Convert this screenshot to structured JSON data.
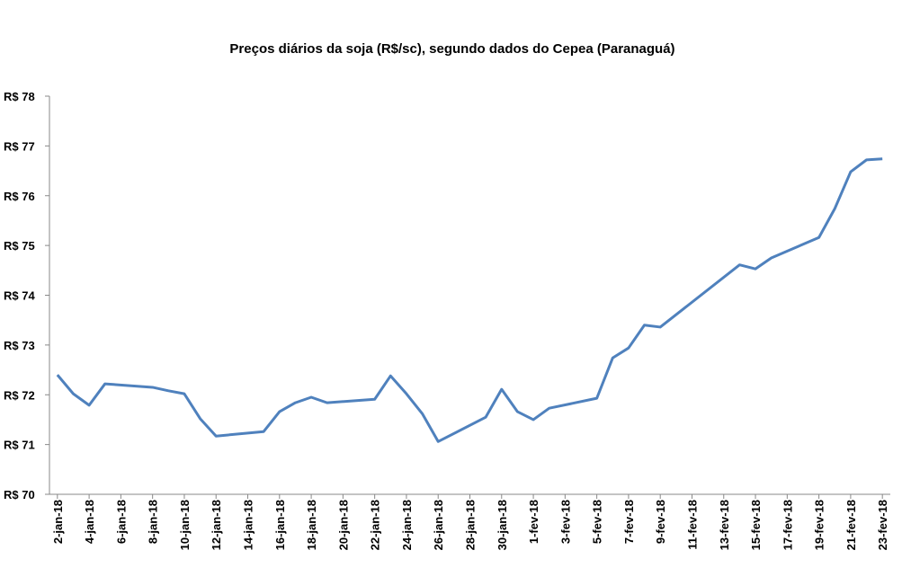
{
  "chart_data": {
    "type": "line",
    "title": "Preços diários da soja (R$/sc), segundo dados do Cepea (Paranaguá)",
    "x": [
      "2-jan-18",
      "3-jan-18",
      "4-jan-18",
      "5-jan-18",
      "8-jan-18",
      "9-jan-18",
      "10-jan-18",
      "11-jan-18",
      "12-jan-18",
      "15-jan-18",
      "16-jan-18",
      "17-jan-18",
      "18-jan-18",
      "19-jan-18",
      "22-jan-18",
      "23-jan-18",
      "24-jan-18",
      "25-jan-18",
      "26-jan-18",
      "29-jan-18",
      "30-jan-18",
      "31-jan-18",
      "1-fev-18",
      "2-fev-18",
      "5-fev-18",
      "6-fev-18",
      "7-fev-18",
      "8-fev-18",
      "9-fev-18",
      "14-fev-18",
      "15-fev-18",
      "16-fev-18",
      "19-fev-18",
      "20-fev-18",
      "21-fev-18",
      "22-fev-18",
      "23-fev-18"
    ],
    "series": [
      {
        "color": "#4f81bd",
        "values": [
          72.4,
          72.02,
          71.79,
          72.22,
          72.15,
          72.08,
          72.02,
          71.52,
          71.17,
          71.26,
          71.66,
          71.84,
          71.95,
          71.84,
          71.91,
          72.38,
          72.02,
          71.62,
          71.06,
          71.55,
          72.11,
          71.66,
          71.5,
          71.73,
          71.93,
          72.74,
          72.94,
          73.4,
          73.36,
          74.61,
          74.53,
          74.75,
          75.16,
          75.74,
          76.48,
          76.72,
          76.74
        ]
      }
    ],
    "xlim": [
      "2-jan-18",
      "23-fev-18"
    ],
    "xticks": [
      "2-jan-18",
      "4-jan-18",
      "6-jan-18",
      "8-jan-18",
      "10-jan-18",
      "12-jan-18",
      "14-jan-18",
      "16-jan-18",
      "18-jan-18",
      "20-jan-18",
      "22-jan-18",
      "24-jan-18",
      "26-jan-18",
      "28-jan-18",
      "30-jan-18",
      "1-fev-18",
      "3-fev-18",
      "5-fev-18",
      "7-fev-18",
      "9-fev-18",
      "11-fev-18",
      "13-fev-18",
      "15-fev-18",
      "17-fev-18",
      "19-fev-18",
      "21-fev-18",
      "23-fev-18"
    ],
    "ylim": [
      70,
      78
    ],
    "yticks": [
      {
        "value": 70,
        "label": "R$ 70"
      },
      {
        "value": 71,
        "label": "R$ 71"
      },
      {
        "value": 72,
        "label": "R$ 72"
      },
      {
        "value": 73,
        "label": "R$ 73"
      },
      {
        "value": 74,
        "label": "R$ 74"
      },
      {
        "value": 75,
        "label": "R$ 75"
      },
      {
        "value": 76,
        "label": "R$ 76"
      },
      {
        "value": 77,
        "label": "R$ 77"
      },
      {
        "value": 78,
        "label": "R$ 78"
      }
    ],
    "grid": false
  }
}
